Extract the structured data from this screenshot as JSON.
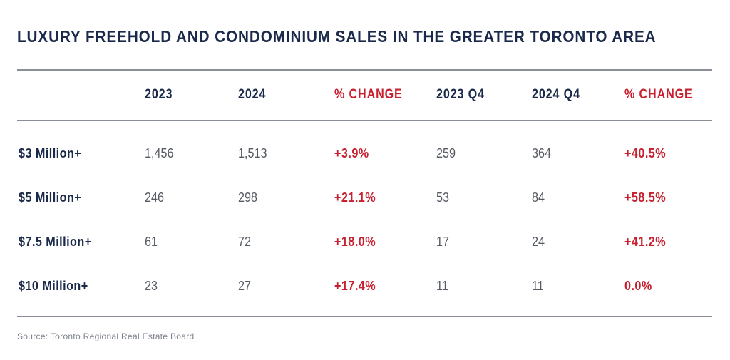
{
  "title": "LUXURY FREEHOLD AND CONDOMINIUM SALES IN THE GREATER TORONTO AREA",
  "headers": [
    "2023",
    "2024",
    "% CHANGE",
    "2023 Q4",
    "2024 Q4",
    "% CHANGE"
  ],
  "rows": [
    {
      "label": "$3 Million+",
      "values": [
        "1,456",
        "1,513",
        "+3.9%",
        "259",
        "364",
        "+40.5%"
      ]
    },
    {
      "label": "$5 Million+",
      "values": [
        "246",
        "298",
        "+21.1%",
        "53",
        "84",
        "+58.5%"
      ]
    },
    {
      "label": "$7.5 Million+",
      "values": [
        "61",
        "72",
        "+18.0%",
        "17",
        "24",
        "+41.2%"
      ]
    },
    {
      "label": "$10 Million+",
      "values": [
        "23",
        "27",
        "+17.4%",
        "11",
        "11",
        "0.0%"
      ]
    }
  ],
  "source": "Source: Toronto Regional Real Estate Board",
  "colors": {
    "navy": "#1b2a4a",
    "red": "#c8202f",
    "gray_text": "#555a63",
    "rule": "#8a8f97"
  }
}
